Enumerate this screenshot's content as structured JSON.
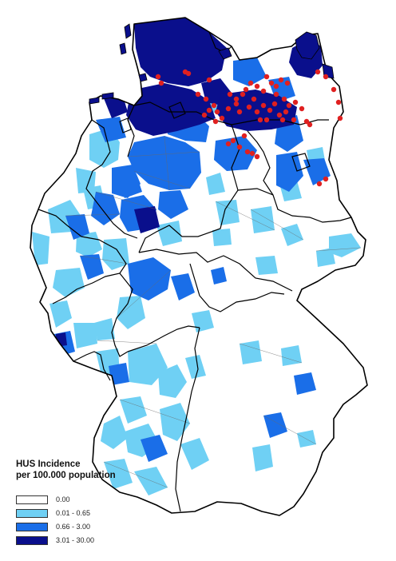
{
  "legend": {
    "title_line1": "HUS Incidence",
    "title_line2": "per 100.000 population",
    "classes": [
      {
        "label": "0.00",
        "color": "#ffffff"
      },
      {
        "label": "0.01 - 0.65",
        "color": "#6fd0f4"
      },
      {
        "label": "0.66 - 3.00",
        "color": "#1a6ee8"
      },
      {
        "label": "3.01 - 30.00",
        "color": "#0a0f8c"
      }
    ]
  },
  "map": {
    "boundary_color": "#000000",
    "outbreak_point_color": "#e02020"
  }
}
